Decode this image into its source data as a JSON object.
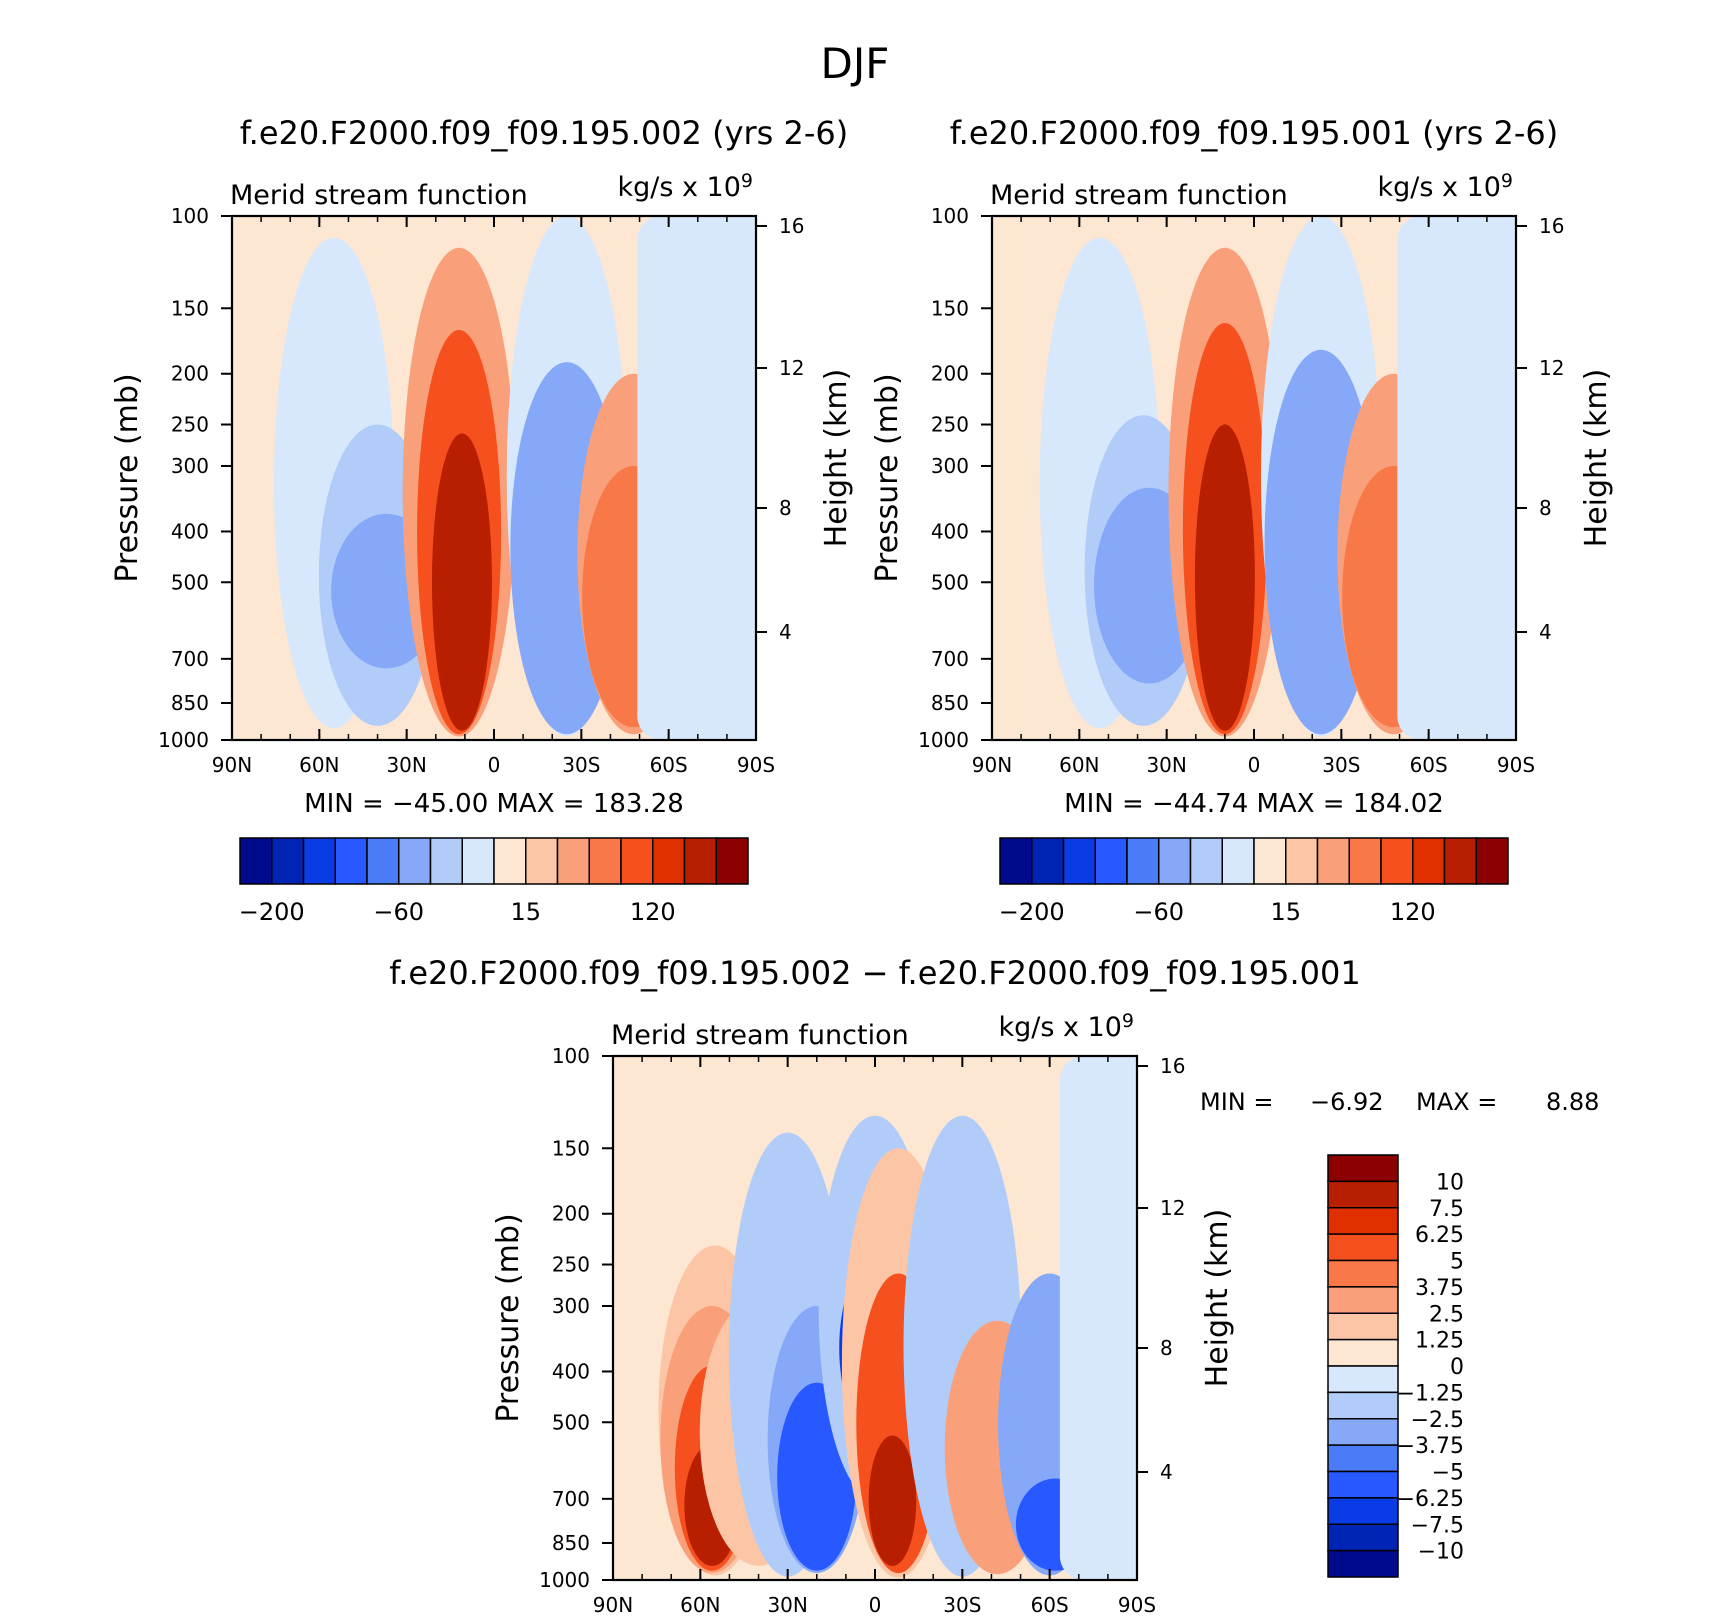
{
  "figure": {
    "title": "DJF"
  },
  "colors": {
    "blues": [
      "#000a8c",
      "#0024b4",
      "#0a3ce6",
      "#2858ff",
      "#4a7cf8",
      "#86a8f8",
      "#b2ccfa",
      "#d8e8fc"
    ],
    "reds": [
      "#fde6d2",
      "#fcc6a6",
      "#f9a07a",
      "#f87848",
      "#f5501e",
      "#e03000",
      "#b81e00",
      "#8c0000"
    ]
  },
  "chart_data": [
    {
      "type": "heatmap",
      "title": "f.e20.F2000.f09_f09.195.002 (yrs 2-6)",
      "left_label": "Merid stream function",
      "right_label": "kg/s x 10",
      "right_label_exp": "9",
      "ylabel": "Pressure (mb)",
      "ylabel_right": "Height (km)",
      "xticks": [
        "90N",
        "60N",
        "30N",
        "0",
        "30S",
        "60S",
        "90S"
      ],
      "xlim": [
        90,
        -90
      ],
      "yticks": [
        "100",
        "150",
        "200",
        "250",
        "300",
        "400",
        "500",
        "700",
        "850",
        "1000"
      ],
      "ylim": [
        1000,
        100
      ],
      "y_scale": "log",
      "height_ticks": [
        "16",
        "12",
        "8",
        "4"
      ],
      "stats_text": "MIN = −45.00 MAX = 183.28",
      "colorbar": {
        "levels": [
          -200,
          -150,
          -120,
          -90,
          -60,
          -30,
          -15,
          0,
          15,
          30,
          60,
          90,
          120,
          150,
          200
        ],
        "tick_labels": [
          "−200",
          "−60",
          "15",
          "120"
        ]
      },
      "cells": [
        {
          "lat_center": 78,
          "value": 5,
          "p_top": 100,
          "p_bot": 1000
        },
        {
          "lat_center": 55,
          "value": -12,
          "p_top": 110,
          "p_bot": 950
        },
        {
          "lat_center": 40,
          "value": -30,
          "p_top": 250,
          "p_bot": 940
        },
        {
          "lat_center": 37,
          "value": -45,
          "p_top": 370,
          "p_bot": 730
        },
        {
          "lat_center": 12,
          "value": 40,
          "p_top": 115,
          "p_bot": 985
        },
        {
          "lat_center": 12,
          "value": 100,
          "p_top": 165,
          "p_bot": 975
        },
        {
          "lat_center": 11,
          "value": 150,
          "p_top": 260,
          "p_bot": 960
        },
        {
          "lat_center": 11,
          "value": 183,
          "p_top": 360,
          "p_bot": 940
        },
        {
          "lat_center": -25,
          "value": -15,
          "p_top": 100,
          "p_bot": 985
        },
        {
          "lat_center": -25,
          "value": -40,
          "p_top": 190,
          "p_bot": 975
        },
        {
          "lat_center": -48,
          "value": 40,
          "p_top": 200,
          "p_bot": 975
        },
        {
          "lat_center": -48,
          "value": 60,
          "p_top": 300,
          "p_bot": 945
        },
        {
          "lat_center": -75,
          "value": -8,
          "p_top": 100,
          "p_bot": 1000
        }
      ]
    },
    {
      "type": "heatmap",
      "title": "f.e20.F2000.f09_f09.195.001 (yrs 2-6)",
      "left_label": "Merid stream function",
      "right_label": "kg/s x 10",
      "right_label_exp": "9",
      "ylabel": "Pressure (mb)",
      "ylabel_right": "Height (km)",
      "xticks": [
        "90N",
        "60N",
        "30N",
        "0",
        "30S",
        "60S",
        "90S"
      ],
      "xlim": [
        90,
        -90
      ],
      "yticks": [
        "100",
        "150",
        "200",
        "250",
        "300",
        "400",
        "500",
        "700",
        "850",
        "1000"
      ],
      "ylim": [
        1000,
        100
      ],
      "y_scale": "log",
      "height_ticks": [
        "16",
        "12",
        "8",
        "4"
      ],
      "stats_text": "MIN = −44.74 MAX = 184.02",
      "colorbar": {
        "levels": [
          -200,
          -150,
          -120,
          -90,
          -60,
          -30,
          -15,
          0,
          15,
          30,
          60,
          90,
          120,
          150,
          200
        ],
        "tick_labels": [
          "−200",
          "−60",
          "15",
          "120"
        ]
      },
      "cells": [
        {
          "lat_center": 78,
          "value": 5,
          "p_top": 100,
          "p_bot": 1000
        },
        {
          "lat_center": 53,
          "value": -12,
          "p_top": 110,
          "p_bot": 950
        },
        {
          "lat_center": 38,
          "value": -30,
          "p_top": 240,
          "p_bot": 940
        },
        {
          "lat_center": 36,
          "value": -45,
          "p_top": 330,
          "p_bot": 780
        },
        {
          "lat_center": 10,
          "value": 40,
          "p_top": 115,
          "p_bot": 985
        },
        {
          "lat_center": 10,
          "value": 100,
          "p_top": 160,
          "p_bot": 975
        },
        {
          "lat_center": 10,
          "value": 150,
          "p_top": 250,
          "p_bot": 960
        },
        {
          "lat_center": 10,
          "value": 184,
          "p_top": 340,
          "p_bot": 940
        },
        {
          "lat_center": -23,
          "value": -15,
          "p_top": 100,
          "p_bot": 985
        },
        {
          "lat_center": -23,
          "value": -40,
          "p_top": 180,
          "p_bot": 975
        },
        {
          "lat_center": -48,
          "value": 40,
          "p_top": 200,
          "p_bot": 975
        },
        {
          "lat_center": -48,
          "value": 60,
          "p_top": 300,
          "p_bot": 945
        },
        {
          "lat_center": -75,
          "value": -8,
          "p_top": 100,
          "p_bot": 1000
        }
      ]
    },
    {
      "type": "heatmap",
      "title": "f.e20.F2000.f09_f09.195.002 − f.e20.F2000.f09_f09.195.001",
      "left_label": "Merid stream function",
      "right_label": "kg/s x 10",
      "right_label_exp": "9",
      "ylabel": "Pressure (mb)",
      "ylabel_right": "Height (km)",
      "xticks": [
        "90N",
        "60N",
        "30N",
        "0",
        "30S",
        "60S",
        "90S"
      ],
      "xlim": [
        90,
        -90
      ],
      "yticks": [
        "100",
        "150",
        "200",
        "250",
        "300",
        "400",
        "500",
        "700",
        "850",
        "1000"
      ],
      "ylim": [
        1000,
        100
      ],
      "y_scale": "log",
      "height_ticks": [
        "16",
        "12",
        "8",
        "4"
      ],
      "stats": {
        "min_label": "MIN =",
        "min_value": "−6.92",
        "max_label": "MAX =",
        "max_value": "8.88"
      },
      "colorbar": {
        "levels": [
          -10,
          -7.5,
          -6.25,
          -5,
          -3.75,
          -2.5,
          -1.25,
          0,
          1.25,
          2.5,
          3.75,
          5,
          6.25,
          7.5,
          10
        ],
        "tick_labels": [
          "10",
          "7.5",
          "6.25",
          "5",
          "3.75",
          "2.5",
          "1.25",
          "0",
          "−1.25",
          "−2.5",
          "−3.75",
          "−5",
          "−6.25",
          "−7.5",
          "−10"
        ]
      },
      "cells": [
        {
          "lat_center": 70,
          "value": 0.6,
          "p_top": 100,
          "p_bot": 1000
        },
        {
          "lat_center": 55,
          "value": 2.0,
          "p_top": 230,
          "p_bot": 980
        },
        {
          "lat_center": 56,
          "value": 3.0,
          "p_top": 300,
          "p_bot": 970
        },
        {
          "lat_center": 56,
          "value": 6.0,
          "p_top": 390,
          "p_bot": 960
        },
        {
          "lat_center": 56,
          "value": 8.0,
          "p_top": 550,
          "p_bot": 940
        },
        {
          "lat_center": 40,
          "value": 1.5,
          "p_top": 290,
          "p_bot": 940
        },
        {
          "lat_center": 30,
          "value": -1.5,
          "p_top": 140,
          "p_bot": 985
        },
        {
          "lat_center": 20,
          "value": -3.5,
          "p_top": 300,
          "p_bot": 970
        },
        {
          "lat_center": 20,
          "value": -5.5,
          "p_top": 420,
          "p_bot": 960
        },
        {
          "lat_center": 0,
          "value": -2.0,
          "p_top": 130,
          "p_bot": 700
        },
        {
          "lat_center": 1,
          "value": -6.9,
          "p_top": 250,
          "p_bot": 520
        },
        {
          "lat_center": -8,
          "value": 2.0,
          "p_top": 150,
          "p_bot": 990
        },
        {
          "lat_center": -8,
          "value": 5.0,
          "p_top": 260,
          "p_bot": 970
        },
        {
          "lat_center": -6,
          "value": 8.8,
          "p_top": 530,
          "p_bot": 940
        },
        {
          "lat_center": -30,
          "value": -1.5,
          "p_top": 130,
          "p_bot": 985
        },
        {
          "lat_center": -42,
          "value": 2.8,
          "p_top": 320,
          "p_bot": 975
        },
        {
          "lat_center": -60,
          "value": -3.0,
          "p_top": 260,
          "p_bot": 980
        },
        {
          "lat_center": -62,
          "value": -5.5,
          "p_top": 640,
          "p_bot": 960
        },
        {
          "lat_center": -80,
          "value": -0.8,
          "p_top": 100,
          "p_bot": 1000
        }
      ]
    }
  ]
}
